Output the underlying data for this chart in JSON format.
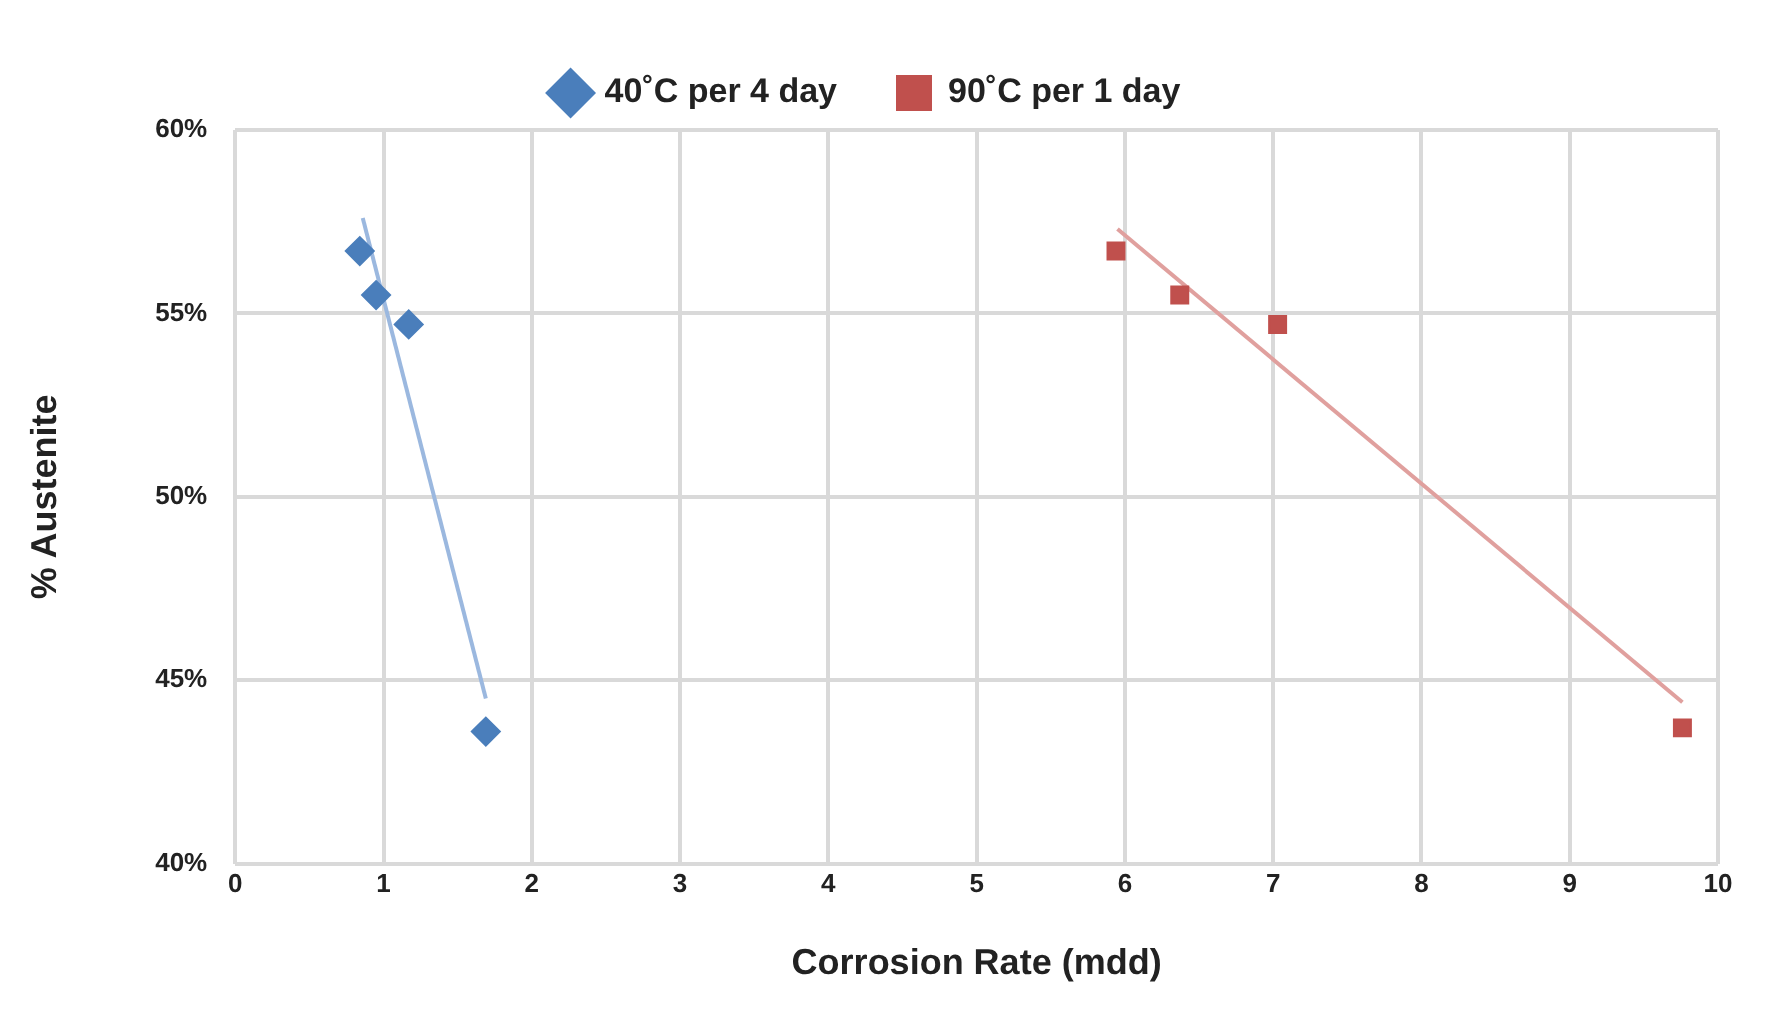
{
  "chart_data": {
    "type": "scatter",
    "xlabel": "Corrosion Rate (mdd)",
    "ylabel": "% Austenite",
    "xlim": [
      0,
      10
    ],
    "xticks": [
      0,
      1,
      2,
      3,
      4,
      5,
      6,
      7,
      8,
      9,
      10
    ],
    "ylim": [
      40,
      60
    ],
    "yticks": [
      {
        "value": 40,
        "label": "40%"
      },
      {
        "value": 45,
        "label": "45%"
      },
      {
        "value": 50,
        "label": "50%"
      },
      {
        "value": 55,
        "label": "55%"
      },
      {
        "value": 60,
        "label": "60%"
      }
    ],
    "grid": true,
    "legend": "top",
    "series": [
      {
        "name": "40˚C per 4 day",
        "color": "#4a7ebb",
        "marker": "diamond",
        "x": [
          0.84,
          0.95,
          1.17,
          1.69
        ],
        "values": [
          56.7,
          55.5,
          54.7,
          43.6
        ]
      },
      {
        "name": "90˚C per 1 day",
        "color": "#c0504d",
        "marker": "square",
        "x": [
          5.94,
          6.37,
          7.03,
          9.76
        ],
        "values": [
          56.7,
          55.5,
          54.7,
          43.7
        ]
      },
      {
        "type": "line",
        "color": "#9bb8df",
        "marker": "none",
        "x": [
          0.86,
          1.69
        ],
        "values": [
          57.6,
          44.5
        ]
      },
      {
        "type": "line",
        "color": "#e0a09e",
        "marker": "none",
        "x": [
          5.95,
          9.76
        ],
        "values": [
          57.3,
          44.4
        ]
      }
    ]
  }
}
